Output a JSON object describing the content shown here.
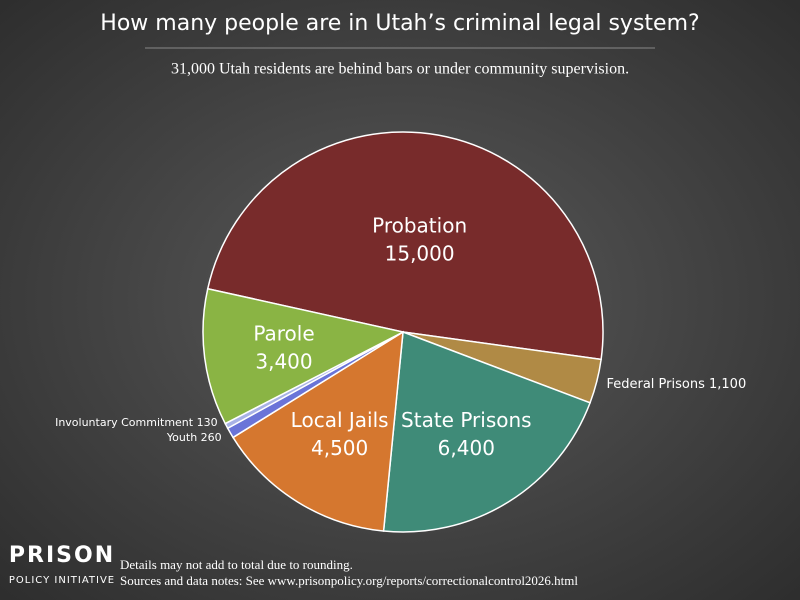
{
  "chart_data": {
    "type": "pie",
    "title": "How many people are in Utah’s criminal legal system?",
    "subtitle": "31,000 Utah residents are behind bars or under community supervision.",
    "categories": [
      "Probation",
      "Federal Prisons",
      "State Prisons",
      "Local Jails",
      "Youth",
      "Involuntary Commitment",
      "Parole"
    ],
    "values": [
      15000,
      1100,
      6400,
      4500,
      260,
      130,
      3400
    ],
    "value_labels": [
      "15,000",
      "1,100",
      "6,400",
      "4,500",
      "260",
      "130",
      "3,400"
    ],
    "colors": [
      "#782b2b",
      "#b08a45",
      "#3f8b78",
      "#d5772f",
      "#6a74d8",
      "#a8b2e6",
      "#8ab444"
    ]
  },
  "footer": {
    "logo_top": "PRISON",
    "logo_bottom": "POLICY INITIATIVE",
    "notes": [
      "Details may not add to total due to rounding.",
      "Sources and data notes: See www.prisonpolicy.org/reports/correctionalcontrol2026.html"
    ]
  }
}
